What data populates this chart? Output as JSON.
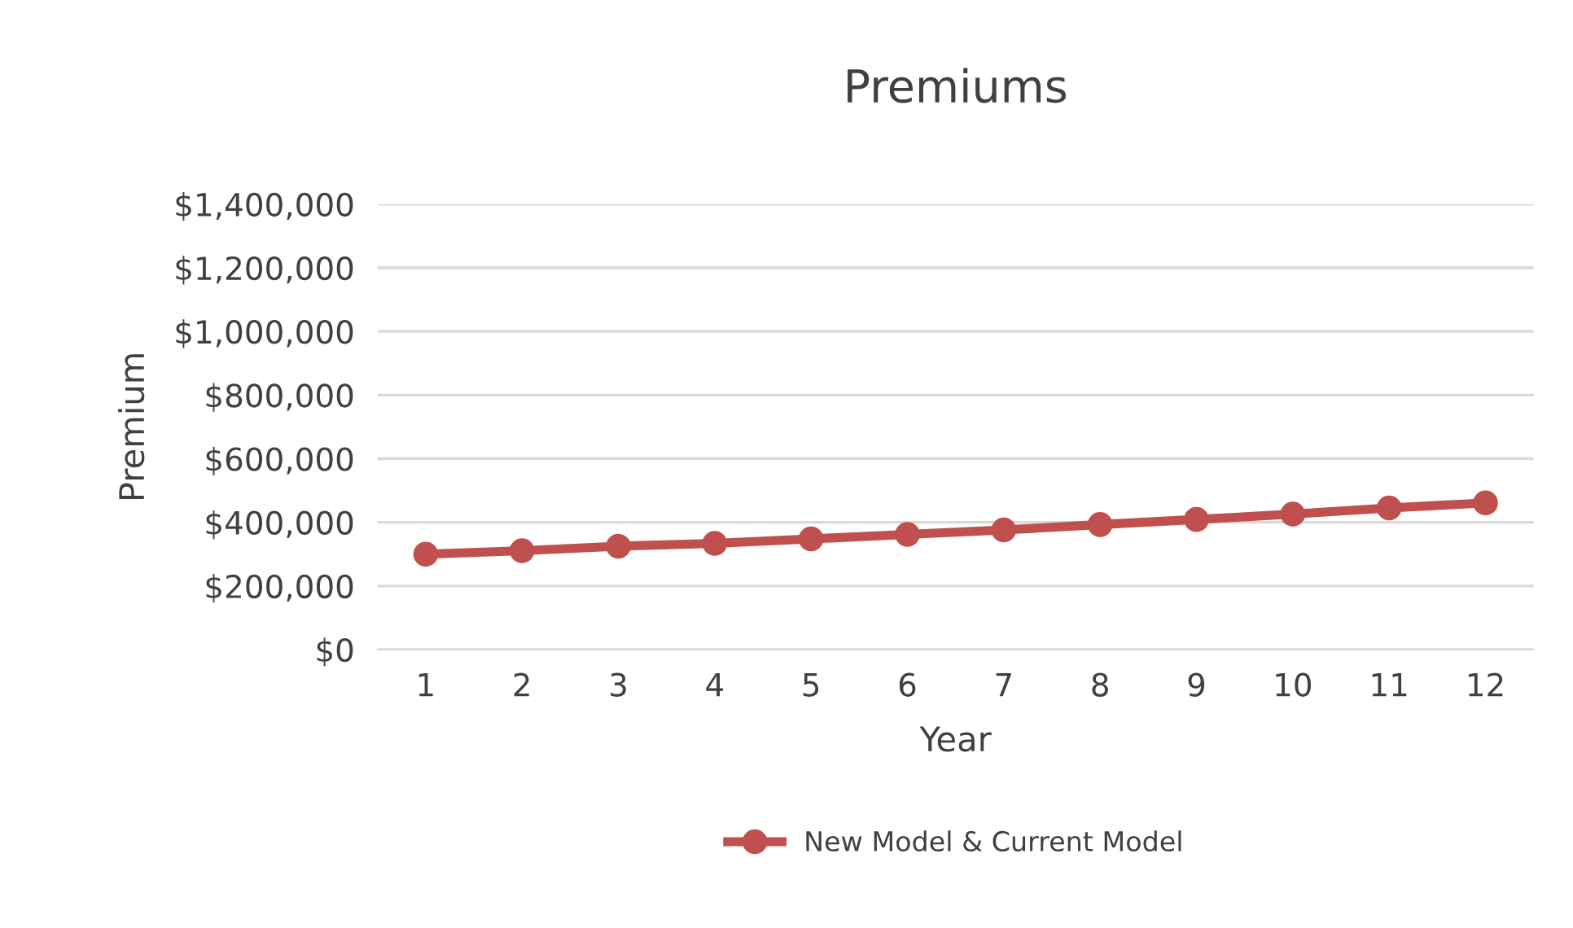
{
  "chart_data": {
    "type": "line",
    "title": "Premiums",
    "xlabel": "Year",
    "ylabel": "Premium",
    "categories": [
      "1",
      "2",
      "3",
      "4",
      "5",
      "6",
      "7",
      "8",
      "9",
      "10",
      "11",
      "12"
    ],
    "series": [
      {
        "name": "New Model & Current Model",
        "color": "#c0504d",
        "values": [
          300000,
          311000,
          325000,
          334000,
          348000,
          362000,
          376000,
          393000,
          409000,
          426000,
          445000,
          461000
        ]
      }
    ],
    "ylim": [
      0,
      1400000
    ],
    "yticks": [
      {
        "value": 0,
        "label": "$0"
      },
      {
        "value": 200000,
        "label": "$200,000"
      },
      {
        "value": 400000,
        "label": "$400,000"
      },
      {
        "value": 600000,
        "label": "$600,000"
      },
      {
        "value": 800000,
        "label": "$800,000"
      },
      {
        "value": 1000000,
        "label": "$1,000,000"
      },
      {
        "value": 1200000,
        "label": "$1,200,000"
      },
      {
        "value": 1400000,
        "label": "$1,400,000"
      }
    ],
    "grid": "y",
    "legend": "bottom",
    "marker": "circle",
    "line_style": "solid"
  }
}
